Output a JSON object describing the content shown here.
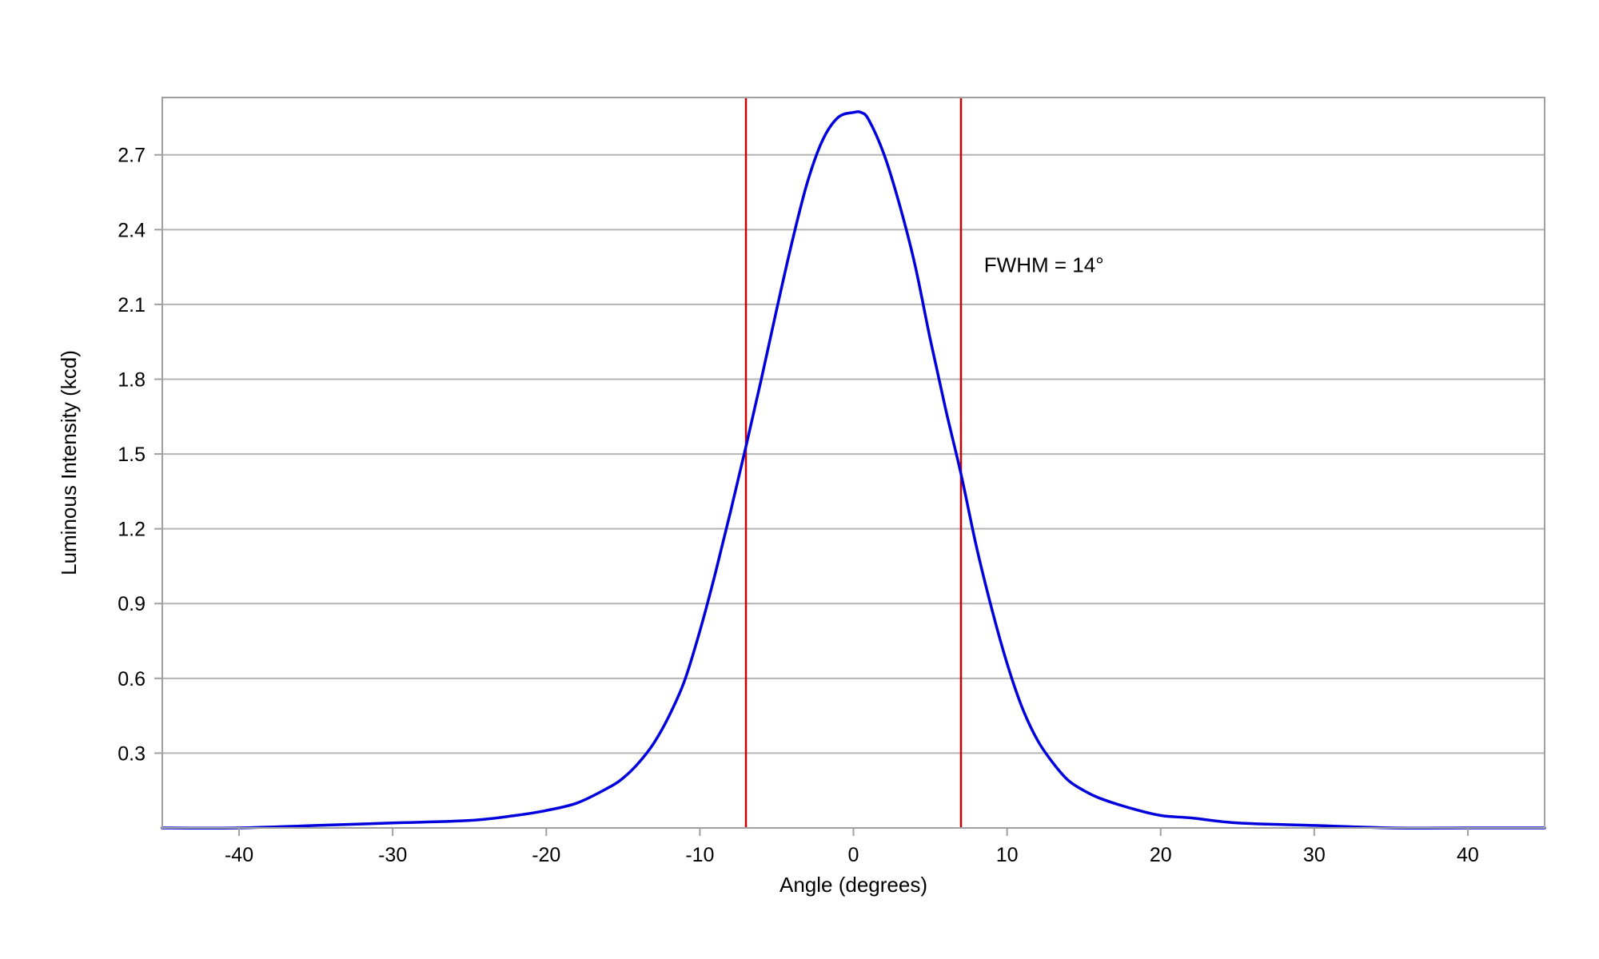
{
  "chart_data": {
    "type": "line",
    "title": "",
    "xlabel": "Angle (degrees)",
    "ylabel": "Luminous Intensity (kcd)",
    "xlim": [
      -45,
      45
    ],
    "ylim": [
      0,
      2.93
    ],
    "grid": true,
    "xticks": [
      -40,
      -30,
      -20,
      -10,
      0,
      10,
      20,
      30,
      40
    ],
    "xtick_labels": [
      "-40",
      "-30",
      "-20",
      "-10",
      "0",
      "10",
      "20",
      "30",
      "40"
    ],
    "yticks": [
      0.3,
      0.6,
      0.9,
      1.2,
      1.5,
      1.8,
      2.1,
      2.4,
      2.7
    ],
    "ytick_labels": [
      "0.3",
      "0.6",
      "0.9",
      "1.2",
      "1.5",
      "1.8",
      "2.1",
      "2.4",
      "2.7"
    ],
    "series": [
      {
        "color": "#0000dd",
        "x": [
          -45,
          -40,
          -35,
          -30,
          -25,
          -22,
          -20,
          -18,
          -16,
          -15,
          -14,
          -13,
          -12,
          -11,
          -10,
          -9,
          -8,
          -7,
          -6,
          -5,
          -4,
          -3,
          -2,
          -1,
          0,
          0.5,
          1,
          2,
          3,
          4,
          5,
          6,
          7,
          8,
          9,
          10,
          11,
          12,
          13,
          14,
          15,
          16,
          18,
          20,
          22,
          25,
          30,
          35,
          40,
          45
        ],
        "y": [
          0.0,
          0.0,
          0.01,
          0.02,
          0.03,
          0.05,
          0.07,
          0.1,
          0.16,
          0.2,
          0.26,
          0.34,
          0.45,
          0.59,
          0.79,
          1.02,
          1.27,
          1.53,
          1.8,
          2.08,
          2.35,
          2.59,
          2.76,
          2.85,
          2.87,
          2.87,
          2.84,
          2.7,
          2.5,
          2.26,
          1.96,
          1.68,
          1.42,
          1.13,
          0.88,
          0.66,
          0.48,
          0.35,
          0.26,
          0.19,
          0.15,
          0.12,
          0.08,
          0.05,
          0.04,
          0.02,
          0.01,
          0.0,
          0.0,
          0.0
        ]
      }
    ],
    "vlines": [
      {
        "x": -7,
        "color": "#cc0000"
      },
      {
        "x": 7,
        "color": "#cc0000"
      }
    ],
    "annotations": [
      {
        "text": "FWHM = 14°",
        "x": 8.5,
        "y": 2.23
      }
    ],
    "colors": {
      "grid": "#b4b4b4",
      "frame": "#a0a0a0"
    }
  }
}
